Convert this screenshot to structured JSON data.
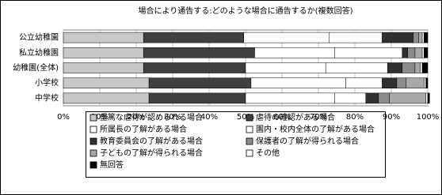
{
  "chart_data": {
    "type": "stacked-bar-horizontal",
    "title": "場合により通告する:どのような場合に通告するか(複数回答)",
    "categories": [
      "公立幼稚園",
      "私立幼稚園",
      "幼稚園(全体)",
      "小学校",
      "中学校"
    ],
    "series": [
      {
        "name": "重篤な虐待が認められる場合",
        "color": "#c8c8c8",
        "values": [
          22,
          22,
          22,
          23.5,
          23.5
        ]
      },
      {
        "name": "虐待の確認がある場合",
        "color": "#404040",
        "values": [
          27.5,
          30.5,
          28,
          28,
          26.5
        ]
      },
      {
        "name": "所属長の了解がある場合",
        "color": "#ffffff",
        "values": [
          23.5,
          22,
          22,
          26,
          24.5
        ]
      },
      {
        "name": "園内・校内全体の了解がある場合",
        "color": "#ffffff",
        "values": [
          14.5,
          18.5,
          17,
          10,
          8.5
        ]
      },
      {
        "name": "教育委員会の了解がある場合",
        "color": "#303030",
        "values": [
          8.5,
          1.5,
          4,
          4,
          3.5
        ]
      },
      {
        "name": "保護者の了解が得られる場合",
        "color": "#8c8c8c",
        "values": [
          1.5,
          2,
          3.5,
          2.5,
          3
        ]
      },
      {
        "name": "子どもの了解が得られる場合",
        "color": "#a8a8a8",
        "values": [
          1,
          2,
          1.5,
          5,
          10
        ]
      },
      {
        "name": "その他",
        "color": "#ffffff",
        "values": [
          0.5,
          0.5,
          0.5,
          0.5,
          0.5
        ]
      },
      {
        "name": "無回答",
        "color": "#000000",
        "values": [
          1,
          1,
          1.5,
          0.5,
          0.5
        ]
      }
    ],
    "xlim": [
      0,
      100
    ],
    "xticks": [
      {
        "value": 0,
        "label": "0%"
      },
      {
        "value": 10,
        "label": "10%"
      },
      {
        "value": 20,
        "label": "20%"
      },
      {
        "value": 30,
        "label": "30%"
      },
      {
        "value": 40,
        "label": "40%"
      },
      {
        "value": 50,
        "label": "50%"
      },
      {
        "value": 60,
        "label": "60%"
      },
      {
        "value": 70,
        "label": "70%"
      },
      {
        "value": 80,
        "label": "80%"
      },
      {
        "value": 90,
        "label": "90%"
      },
      {
        "value": 100,
        "label": "100%"
      }
    ],
    "grid": true
  }
}
